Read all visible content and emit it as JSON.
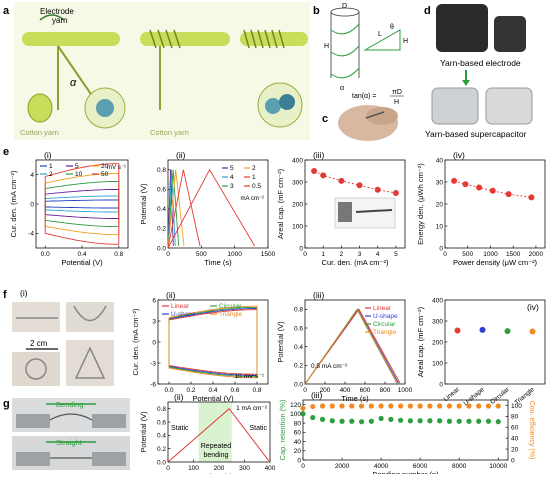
{
  "panels": {
    "a": {
      "letter": "a",
      "electrode_label_1": "Electrode",
      "electrode_label_2": "yarn",
      "alpha": "α",
      "cotton_left": "Cotton yarn",
      "cotton_right": "Cotton yarn"
    },
    "b": {
      "letter": "b",
      "D": "D",
      "L": "L",
      "H": "H",
      "theta": "θ",
      "alpha": "α",
      "formula_lhs": "tan(α) =",
      "formula_num": "πD",
      "formula_den": "H"
    },
    "c": {
      "letter": "c"
    },
    "d": {
      "letter": "d",
      "caption_top": "Yarn-based electrode",
      "caption_bottom": "Yarn-based supercapacitor"
    },
    "e": {
      "letter": "e"
    },
    "f": {
      "letter": "f",
      "scale": "2 cm"
    },
    "g": {
      "letter": "g",
      "bending": "Bending",
      "straight": "Straight"
    }
  },
  "chart_data": [
    {
      "id": "e-i",
      "sub": "(i)",
      "type": "line",
      "xlabel": "Potential (V)",
      "ylabel": "Cur. den. (mA cm⁻²)",
      "xlim": [
        -0.1,
        0.9
      ],
      "ylim": [
        -6,
        6
      ],
      "xticks": [
        "0.0",
        "0.4",
        "0.8"
      ],
      "yticks": [
        "-4",
        "0",
        "4"
      ],
      "legend_unit": "mV s⁻¹",
      "series": [
        {
          "name": "1",
          "color": "#1f3fbf"
        },
        {
          "name": "2",
          "color": "#2ea3d8"
        },
        {
          "name": "5",
          "color": "#6a1b9a"
        },
        {
          "name": "10",
          "color": "#2e9d3e"
        },
        {
          "name": "20",
          "color": "#f0a020"
        },
        {
          "name": "50",
          "color": "#e53935"
        }
      ]
    },
    {
      "id": "e-ii",
      "sub": "(ii)",
      "type": "line",
      "xlabel": "Time (s)",
      "ylabel": "Potential (V)",
      "xlim": [
        0,
        1500
      ],
      "ylim": [
        0,
        0.9
      ],
      "xticks": [
        "0",
        "500",
        "1000",
        "1500"
      ],
      "yticks": [
        "0.0",
        "0.2",
        "0.4",
        "0.6",
        "0.8"
      ],
      "legend_unit": "mA cm⁻²",
      "series": [
        {
          "name": "5",
          "color": "#6a1b9a",
          "t_end": 80
        },
        {
          "name": "4",
          "color": "#2ea3d8",
          "t_end": 110
        },
        {
          "name": "3",
          "color": "#2e9d3e",
          "t_end": 160
        },
        {
          "name": "2",
          "color": "#f0a020",
          "t_end": 240
        },
        {
          "name": "1",
          "color": "#e53935",
          "t_end": 480
        },
        {
          "name": "0.5",
          "color": "#e53935",
          "t_end": 1300
        }
      ]
    },
    {
      "id": "e-iii",
      "sub": "(iii)",
      "type": "line",
      "xlabel": "Cur. den. (mA cm⁻²)",
      "ylabel": "Areal cap. (mF cm⁻²)",
      "xlim": [
        0,
        5.5
      ],
      "ylim": [
        0,
        400
      ],
      "xticks": [
        "0",
        "1",
        "2",
        "3",
        "4",
        "5"
      ],
      "yticks": [
        "0",
        "100",
        "200",
        "300",
        "400"
      ],
      "x": [
        0.5,
        1,
        2,
        3,
        4,
        5
      ],
      "values": [
        350,
        330,
        305,
        285,
        265,
        250
      ],
      "color": "#e53935"
    },
    {
      "id": "e-iv",
      "sub": "(iv)",
      "type": "line",
      "xlabel": "Power density (μW cm⁻²)",
      "ylabel": "Energy den. (μWh cm⁻²)",
      "xlim": [
        0,
        2200
      ],
      "ylim": [
        0,
        40
      ],
      "xticks": [
        "0",
        "500",
        "1000",
        "1500",
        "2000"
      ],
      "yticks": [
        "0",
        "10",
        "20",
        "30",
        "40"
      ],
      "x": [
        200,
        450,
        750,
        1050,
        1400,
        1900
      ],
      "values": [
        30.5,
        29,
        27.5,
        26,
        24.5,
        23
      ],
      "color": "#e53935"
    },
    {
      "id": "f-ii",
      "sub": "(ii)",
      "type": "line",
      "xlabel": "Potential (V)",
      "ylabel": "Cur. den. (mA cm⁻²)",
      "xlim": [
        -0.1,
        0.9
      ],
      "ylim": [
        -6,
        6
      ],
      "xticks": [
        "0.0",
        "0.2",
        "0.4",
        "0.6",
        "0.8"
      ],
      "yticks": [
        "-6",
        "-3",
        "0",
        "3",
        "6"
      ],
      "annotation": "10 mV s⁻¹",
      "series": [
        {
          "name": "Linear",
          "color": "#e53935"
        },
        {
          "name": "U-shape",
          "color": "#2e3fd0"
        },
        {
          "name": "Circular",
          "color": "#2e9d3e"
        },
        {
          "name": "Triangle",
          "color": "#f08a20"
        }
      ]
    },
    {
      "id": "f-iii",
      "sub": "(iii)",
      "type": "line",
      "xlabel": "Time (s)",
      "ylabel": "Potential (V)",
      "xlim": [
        0,
        1000
      ],
      "ylim": [
        0,
        0.9
      ],
      "xticks": [
        "0",
        "200",
        "400",
        "600",
        "800",
        "1000"
      ],
      "yticks": [
        "0.0",
        "0.2",
        "0.4",
        "0.6",
        "0.8"
      ],
      "annotation": "0.5 mA cm⁻²",
      "series": [
        {
          "name": "Linear",
          "color": "#e53935",
          "t_peak": 540,
          "t_end": 950
        },
        {
          "name": "U-shape",
          "color": "#2e3fd0",
          "t_peak": 530,
          "t_end": 935
        },
        {
          "name": "Circular",
          "color": "#2e9d3e",
          "t_peak": 520,
          "t_end": 920
        },
        {
          "name": "Triangle",
          "color": "#f08a20",
          "t_peak": 525,
          "t_end": 925
        }
      ]
    },
    {
      "id": "f-iv",
      "sub": "(iv)",
      "type": "scatter",
      "ylabel": "Areal cap. (mF cm⁻²)",
      "ylim": [
        0,
        400
      ],
      "yticks": [
        "0",
        "100",
        "200",
        "300",
        "400"
      ],
      "categories": [
        "Linear",
        "U-shape",
        "Circular",
        "Triangle"
      ],
      "values": [
        255,
        258,
        252,
        250
      ],
      "colors": [
        "#e53935",
        "#2e3fd0",
        "#2e9d3e",
        "#f08a20"
      ]
    },
    {
      "id": "g-ii",
      "sub": "(ii)",
      "type": "line",
      "xlabel": "Time (s)",
      "ylabel": "Potential (V)",
      "xlim": [
        0,
        400
      ],
      "ylim": [
        0,
        0.9
      ],
      "xticks": [
        "0",
        "100",
        "200",
        "300",
        "400"
      ],
      "yticks": [
        "0.0",
        "0.2",
        "0.4",
        "0.6",
        "0.8"
      ],
      "annotation": "1 mA cm⁻²",
      "label_static_left": "Static",
      "label_static_right": "Static",
      "label_repeated_1": "Repeated",
      "label_repeated_2": "bending",
      "band": [
        120,
        250
      ],
      "color": "#e53935"
    },
    {
      "id": "g-iii",
      "sub": "(iii)",
      "type": "scatter",
      "xlabel": "Bending number (n)",
      "ylabel": "Cap. retention (%)",
      "ylabel_right": "Cou. efficiency (%)",
      "xlim": [
        0,
        10500
      ],
      "ylim": [
        0,
        130
      ],
      "ylim_right": [
        0,
        110
      ],
      "xticks": [
        "0",
        "2000",
        "4000",
        "6000",
        "8000",
        "10000"
      ],
      "yticks": [
        "0",
        "20",
        "40",
        "60",
        "80",
        "100",
        "120"
      ],
      "yticks_right": [
        "0",
        "20",
        "40",
        "60",
        "80",
        "100"
      ],
      "x": [
        0,
        500,
        1000,
        1500,
        2000,
        2500,
        3000,
        3500,
        4000,
        4500,
        5000,
        5500,
        6000,
        6500,
        7000,
        7500,
        8000,
        8500,
        9000,
        9500,
        10000
      ],
      "retention": [
        100,
        92,
        88,
        85,
        84,
        84,
        83,
        84,
        90,
        88,
        86,
        85,
        85,
        85,
        85,
        84,
        84,
        84,
        84,
        84,
        83
      ],
      "efficiency": [
        95,
        98,
        99,
        99,
        99,
        99,
        99,
        99,
        99,
        99,
        99,
        99,
        99,
        99,
        99,
        99,
        99,
        99,
        99,
        99,
        99
      ],
      "color_retention": "#2e9d3e",
      "color_efficiency": "#f08a20"
    }
  ]
}
